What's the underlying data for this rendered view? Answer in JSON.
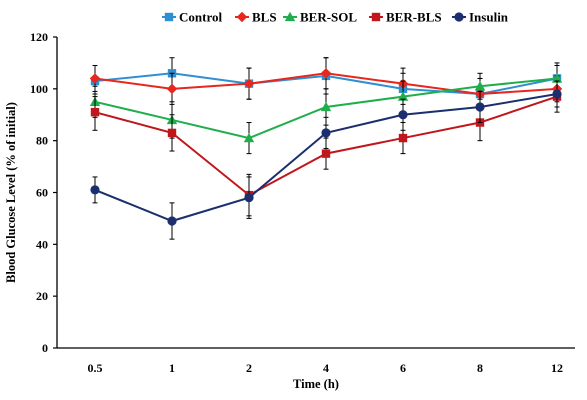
{
  "chart_data": {
    "type": "line",
    "x_ticks": [
      "0.5",
      "1",
      "2",
      "4",
      "6",
      "8",
      "12"
    ],
    "xlabel": "Time (h)",
    "ylabel": "Blood Glucose Level (% of initial)",
    "ylim": [
      0,
      120
    ],
    "yticks": [
      0,
      20,
      40,
      60,
      80,
      100,
      120
    ],
    "grid": false,
    "legend": "top",
    "error_bars": true,
    "series": [
      {
        "name": "Control",
        "color": "#2f8fd0",
        "marker": "square",
        "values": [
          103,
          106,
          102,
          105,
          100,
          98,
          104
        ],
        "errors": [
          6,
          6,
          6,
          7,
          6,
          6,
          6
        ]
      },
      {
        "name": "BLS",
        "color": "#e6261f",
        "marker": "diamond",
        "values": [
          104,
          100,
          102,
          106,
          102,
          98,
          100
        ],
        "errors": [
          5,
          6,
          6,
          6,
          6,
          6,
          5
        ]
      },
      {
        "name": "BER-SOL",
        "color": "#1fae4b",
        "marker": "triangle",
        "values": [
          95,
          88,
          81,
          93,
          97,
          101,
          104
        ],
        "errors": [
          6,
          7,
          6,
          7,
          6,
          5,
          5
        ]
      },
      {
        "name": "BER-BLS",
        "color": "#c0171c",
        "marker": "square",
        "values": [
          91,
          83,
          59,
          75,
          81,
          87,
          97
        ],
        "errors": [
          7,
          7,
          8,
          6,
          6,
          7,
          6
        ]
      },
      {
        "name": "Insulin",
        "color": "#1b2f6e",
        "marker": "circle",
        "values": [
          61,
          49,
          58,
          83,
          90,
          93,
          98
        ],
        "errors": [
          5,
          7,
          8,
          6,
          6,
          6,
          5
        ]
      }
    ]
  }
}
